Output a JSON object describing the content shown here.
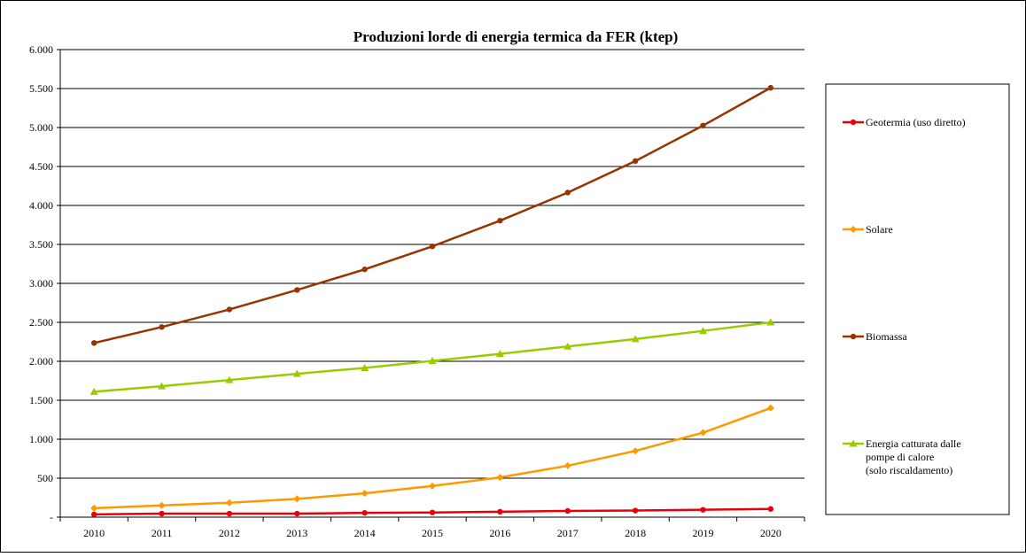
{
  "chart_data": {
    "type": "line",
    "title": "Produzioni lorde di energia termica da FER (ktep)",
    "xlabel": "",
    "ylabel": "",
    "x": [
      "2010",
      "2011",
      "2012",
      "2013",
      "2014",
      "2015",
      "2016",
      "2017",
      "2018",
      "2019",
      "2020"
    ],
    "ylim": [
      0,
      6000
    ],
    "yticks": [
      0,
      500,
      1000,
      1500,
      2000,
      2500,
      3000,
      3500,
      4000,
      4500,
      5000,
      5500,
      6000
    ],
    "ytick_labels": [
      "-",
      "500",
      "1.000",
      "1.500",
      "2.000",
      "2.500",
      "3.000",
      "3.500",
      "4.000",
      "4.500",
      "5.000",
      "5.500",
      "6.000"
    ],
    "grid": true,
    "legend_position": "right",
    "series": [
      {
        "name": "Geotermia (uso diretto)",
        "color": "#e8000b",
        "marker": "circle",
        "values": [
          35,
          45,
          45,
          45,
          55,
          60,
          70,
          80,
          85,
          95,
          105
        ]
      },
      {
        "name": "Solare",
        "color": "#ff9900",
        "marker": "diamond",
        "values": [
          115,
          150,
          185,
          235,
          305,
          400,
          510,
          660,
          850,
          1085,
          1400
        ]
      },
      {
        "name": "Biomassa",
        "color": "#993300",
        "marker": "circle",
        "values": [
          2235,
          2440,
          2665,
          2915,
          3180,
          3475,
          3805,
          4165,
          4570,
          5025,
          5510
        ]
      },
      {
        "name": "Energia catturata dalle pompe di calore (solo riscaldamento)",
        "color": "#99cc00",
        "marker": "triangle",
        "legend_lines": [
          "Energia catturata dalle",
          "pompe di calore",
          "(solo riscaldamento)"
        ],
        "values": [
          1610,
          1680,
          1760,
          1840,
          1915,
          2005,
          2095,
          2190,
          2285,
          2390,
          2500
        ]
      }
    ]
  }
}
